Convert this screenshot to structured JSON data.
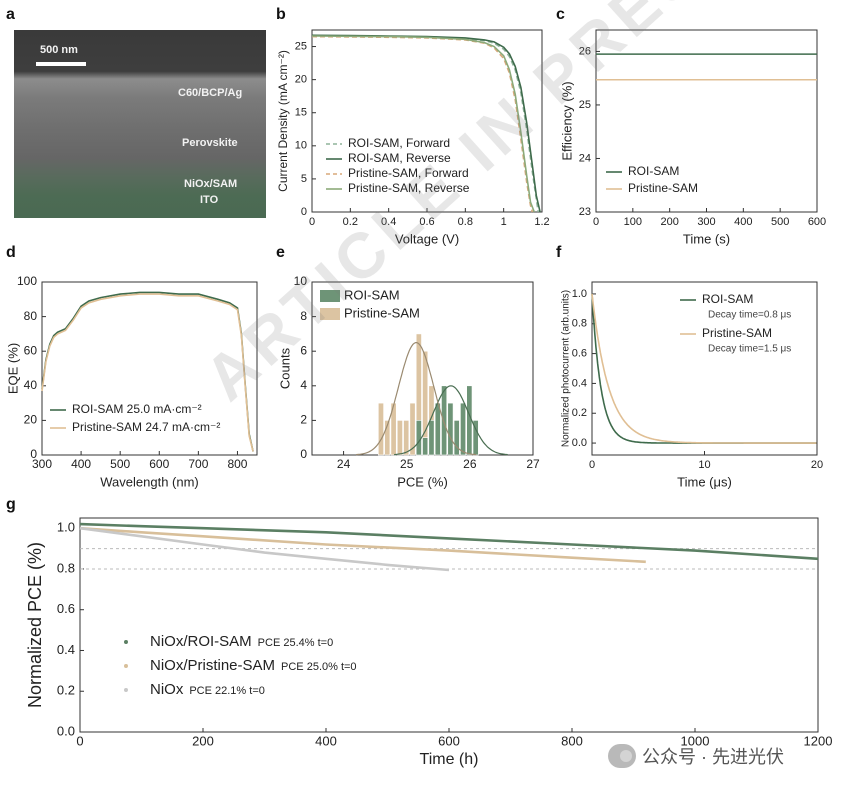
{
  "panels": {
    "a": {
      "label": "a",
      "scale_bar": "500 nm",
      "layers": [
        "C60/BCP/Ag",
        "Perovskite",
        "NiOx/SAM",
        "ITO"
      ]
    },
    "b": {
      "label": "b"
    },
    "c": {
      "label": "c"
    },
    "d": {
      "label": "d"
    },
    "e": {
      "label": "e"
    },
    "f": {
      "label": "f"
    },
    "g": {
      "label": "g"
    }
  },
  "colors": {
    "roi": "#5b7f63",
    "pristine": "#d8bf9a",
    "niox": "#c8c8c8",
    "fit_roi": "#4a6e52",
    "fit_pristine": "#9a8a70"
  },
  "watermark": "ARTICLE IN PRESS",
  "brand": {
    "text": "公众号 · 先进光伏"
  },
  "chart_data": [
    {
      "id": "b",
      "type": "line",
      "xlabel": "Voltage (V)",
      "ylabel": "Current Density (mA cm⁻²)",
      "xlim": [
        0.0,
        1.2
      ],
      "ylim": [
        0,
        27.5
      ],
      "xticks": [
        0.0,
        0.2,
        0.4,
        0.6,
        0.8,
        1.0,
        1.2
      ],
      "yticks": [
        0,
        5,
        10,
        15,
        20,
        25
      ],
      "legend": "bottom-left",
      "series": [
        {
          "name": "ROI-SAM, Forward",
          "style": "dashed",
          "color": "#8fb39a",
          "x": [
            0,
            0.2,
            0.4,
            0.6,
            0.8,
            0.9,
            0.95,
            1.0,
            1.03,
            1.06,
            1.09,
            1.12,
            1.15,
            1.17,
            1.18
          ],
          "y": [
            26.6,
            26.55,
            26.5,
            26.4,
            26.2,
            25.9,
            25.5,
            24.6,
            23.5,
            21.5,
            18.0,
            12.5,
            6.0,
            2.0,
            0
          ]
        },
        {
          "name": "ROI-SAM, Reverse",
          "style": "solid",
          "color": "#3f6b4c",
          "x": [
            0,
            0.2,
            0.4,
            0.6,
            0.8,
            0.9,
            0.95,
            1.0,
            1.03,
            1.06,
            1.09,
            1.12,
            1.15,
            1.17,
            1.19
          ],
          "y": [
            26.7,
            26.65,
            26.6,
            26.5,
            26.3,
            26.0,
            25.7,
            24.9,
            23.9,
            22.0,
            18.8,
            13.5,
            7.0,
            2.5,
            0
          ]
        },
        {
          "name": "Pristine-SAM, Forward",
          "style": "dashed",
          "color": "#d8a87a",
          "x": [
            0,
            0.2,
            0.4,
            0.6,
            0.8,
            0.9,
            0.95,
            1.0,
            1.03,
            1.06,
            1.09,
            1.12,
            1.14,
            1.15
          ],
          "y": [
            26.5,
            26.45,
            26.4,
            26.3,
            26.0,
            25.5,
            24.8,
            23.2,
            21.0,
            17.0,
            11.0,
            4.5,
            1.0,
            0
          ]
        },
        {
          "name": "Pristine-SAM, Reverse",
          "style": "solid",
          "color": "#8caa7a",
          "x": [
            0,
            0.2,
            0.4,
            0.6,
            0.8,
            0.9,
            0.95,
            1.0,
            1.03,
            1.06,
            1.09,
            1.12,
            1.14,
            1.16
          ],
          "y": [
            26.6,
            26.55,
            26.5,
            26.4,
            26.1,
            25.6,
            25.0,
            23.6,
            21.5,
            17.8,
            12.0,
            5.5,
            1.5,
            0
          ]
        }
      ]
    },
    {
      "id": "c",
      "type": "line",
      "xlabel": "Time (s)",
      "ylabel": "Efficiency (%)",
      "xlim": [
        0,
        600
      ],
      "ylim": [
        23,
        26.4
      ],
      "xticks": [
        0,
        100,
        200,
        300,
        400,
        500,
        600
      ],
      "yticks": [
        23,
        24,
        25,
        26
      ],
      "legend": "bottom-left",
      "series": [
        {
          "name": "ROI-SAM",
          "color": "#3f6b4c",
          "x": [
            0,
            600
          ],
          "y": [
            25.95,
            25.95
          ]
        },
        {
          "name": "Pristine-SAM",
          "color": "#e0bf94",
          "x": [
            0,
            600
          ],
          "y": [
            25.47,
            25.47
          ]
        }
      ]
    },
    {
      "id": "d",
      "type": "line",
      "xlabel": "Wavelength (nm)",
      "ylabel": "EQE (%)",
      "xlim": [
        300,
        850
      ],
      "ylim": [
        0,
        100
      ],
      "xticks": [
        300,
        400,
        500,
        600,
        700,
        800
      ],
      "yticks": [
        0,
        20,
        40,
        60,
        80,
        100
      ],
      "legend": "bottom-left",
      "series": [
        {
          "name": "ROI-SAM 25.0 mA·cm⁻²",
          "color": "#3f6b4c",
          "x": [
            300,
            310,
            320,
            330,
            340,
            360,
            380,
            400,
            420,
            450,
            500,
            550,
            600,
            650,
            700,
            750,
            780,
            800,
            810,
            820,
            830,
            840
          ],
          "y": [
            38,
            55,
            64,
            69,
            71,
            73,
            79,
            86,
            89,
            91,
            93,
            94,
            94,
            93,
            93,
            90,
            88,
            85,
            70,
            40,
            12,
            2
          ]
        },
        {
          "name": "Pristine-SAM 24.7 mA·cm⁻²",
          "color": "#e0bf94",
          "x": [
            300,
            310,
            320,
            330,
            340,
            360,
            380,
            400,
            420,
            450,
            500,
            550,
            600,
            650,
            700,
            750,
            780,
            800,
            810,
            820,
            830,
            840
          ],
          "y": [
            37,
            54,
            63,
            68,
            70,
            72,
            78,
            85,
            88,
            90,
            92,
            93,
            93,
            92,
            92,
            89,
            87,
            84,
            69,
            39,
            11,
            2
          ]
        }
      ]
    },
    {
      "id": "e",
      "type": "bar",
      "xlabel": "PCE (%)",
      "ylabel": "Counts",
      "xlim": [
        23.5,
        27
      ],
      "ylim": [
        0,
        10
      ],
      "xticks": [
        24,
        25,
        26,
        27
      ],
      "yticks": [
        0,
        2,
        4,
        6,
        8,
        10
      ],
      "bin_width": 0.1,
      "legend": "top-left",
      "series": [
        {
          "name": "ROI-SAM",
          "color": "#6e9477",
          "x": [
            25.2,
            25.3,
            25.4,
            25.5,
            25.6,
            25.7,
            25.8,
            25.9,
            26.0,
            26.1
          ],
          "y": [
            2,
            1,
            2,
            3,
            4,
            3,
            2,
            3,
            4,
            2
          ],
          "fit": {
            "mean": 25.7,
            "sd": 0.28,
            "peak": 4
          }
        },
        {
          "name": "Pristine-SAM",
          "color": "#dcc4a2",
          "x": [
            24.6,
            24.7,
            24.8,
            24.9,
            25.0,
            25.1,
            25.2,
            25.3,
            25.4
          ],
          "y": [
            3,
            2,
            3,
            2,
            2,
            3,
            7,
            6,
            4
          ],
          "fit": {
            "mean": 25.15,
            "sd": 0.28,
            "peak": 6.5
          }
        }
      ]
    },
    {
      "id": "f",
      "type": "line",
      "xlabel": "Time (μs)",
      "ylabel": "Normalized photocurrent (arb.units)",
      "xlim": [
        0,
        20
      ],
      "ylim": [
        -0.08,
        1.08
      ],
      "xticks": [
        0,
        10,
        20
      ],
      "yticks": [
        0.0,
        0.2,
        0.4,
        0.6,
        0.8,
        1.0
      ],
      "legend": "top-right",
      "series": [
        {
          "name": "ROI-SAM",
          "note": "Decay time=0.8 μs",
          "color": "#3f6b4c",
          "tau": 0.8
        },
        {
          "name": "Pristine-SAM",
          "note": "Decay time=1.5 μs",
          "color": "#e0bf94",
          "tau": 1.5
        }
      ]
    },
    {
      "id": "g",
      "type": "scatter",
      "xlabel": "Time (h)",
      "ylabel": "Normalized PCE (%)",
      "xlim": [
        0,
        1200
      ],
      "ylim": [
        0,
        1.05
      ],
      "xticks": [
        0,
        200,
        400,
        600,
        800,
        1000,
        1200
      ],
      "yticks": [
        0.0,
        0.2,
        0.4,
        0.6,
        0.8,
        1.0
      ],
      "reference_lines": [
        0.9,
        0.8
      ],
      "legend": "center-left",
      "series": [
        {
          "name": "NiOx/ROI-SAM",
          "note": "PCE 25.4% t=0",
          "color": "#5b7f63",
          "x": [
            0,
            100,
            200,
            400,
            600,
            800,
            1000,
            1200
          ],
          "y": [
            1.02,
            1.01,
            1.0,
            0.98,
            0.95,
            0.92,
            0.89,
            0.85
          ]
        },
        {
          "name": "NiOx/Pristine-SAM",
          "note": "PCE 25.0% t=0",
          "color": "#d8bf9a",
          "x": [
            0,
            100,
            200,
            400,
            600,
            800,
            920
          ],
          "y": [
            1.0,
            0.98,
            0.96,
            0.92,
            0.89,
            0.855,
            0.835
          ]
        },
        {
          "name": "NiOx",
          "note": "PCE 22.1% t=0",
          "color": "#c8c8c8",
          "x": [
            0,
            100,
            200,
            300,
            400,
            500,
            600
          ],
          "y": [
            1.0,
            0.96,
            0.92,
            0.88,
            0.85,
            0.82,
            0.795
          ]
        }
      ]
    }
  ]
}
